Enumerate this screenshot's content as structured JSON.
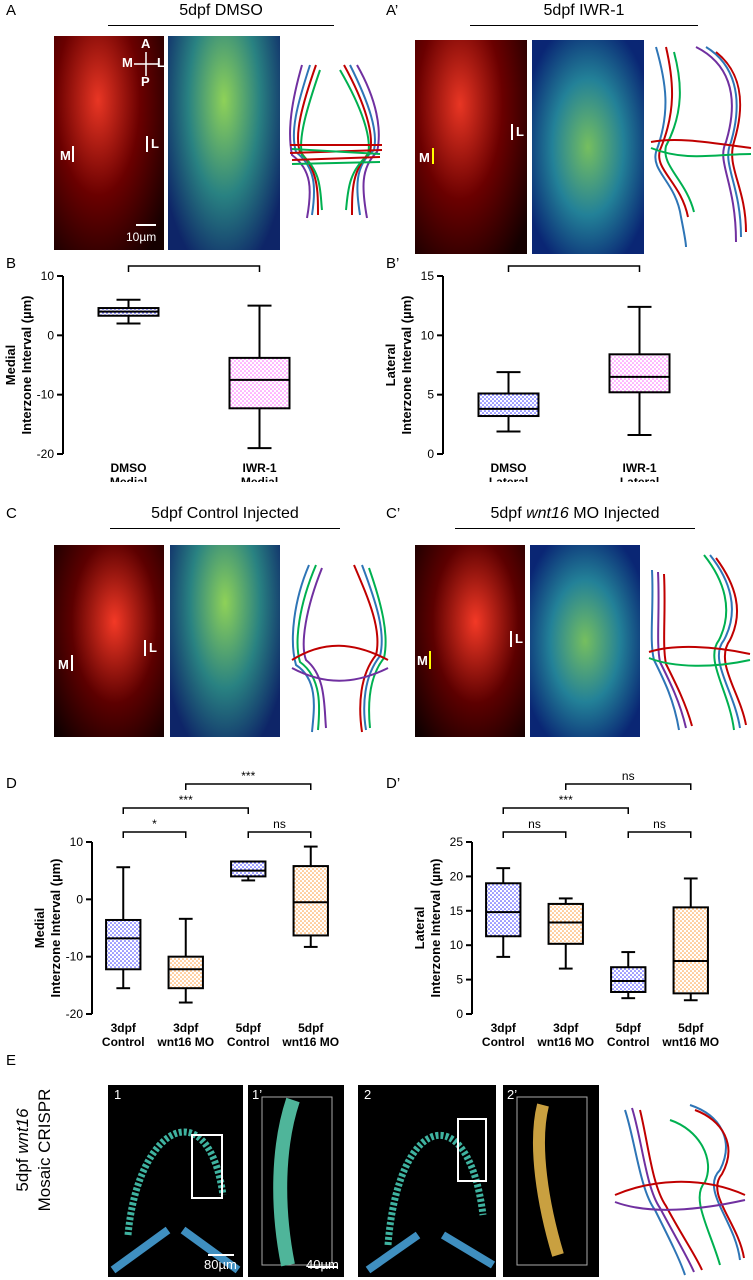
{
  "panel_letters": {
    "A": "A",
    "A2": "A’",
    "B": "B",
    "B2": "B’",
    "C": "C",
    "C2": "C’",
    "D": "D",
    "D2": "D’",
    "E": "E"
  },
  "titles": {
    "A": "5dpf DMSO",
    "A2": "5dpf IWR-1",
    "C": "5dpf Control Injected",
    "C2_pre": "5dpf ",
    "C2_gene": "wnt16",
    "C2_post": " MO Injected"
  },
  "image_labels": {
    "axis_A": "A",
    "axis_P": "P",
    "axis_M": "M",
    "axis_L": "L",
    "M": "M",
    "L": "L",
    "scale_A": "10µm",
    "E1": "1",
    "E1b": "1’",
    "E2": "2",
    "E2b": "2’",
    "scale_E1": "80µm",
    "scale_E1b": "40µm"
  },
  "side_label_E": {
    "line1_pre": "5dpf ",
    "line1_gene": "wnt16",
    "line2": "Mosaic CRISPR"
  },
  "chart_data": [
    {
      "type": "box",
      "panel": "B",
      "ylabel": "Medial\nInterzone Interval (µm)",
      "ylim": [
        -20,
        10
      ],
      "yticks": [
        10,
        0,
        -10,
        -20
      ],
      "categories": [
        [
          "DMSO",
          "Medial"
        ],
        [
          "IWR-1",
          "Medial"
        ]
      ],
      "boxes": [
        {
          "min": 2,
          "q1": 3.3,
          "median": 4,
          "q3": 4.6,
          "max": 6,
          "fill": "#3333ff"
        },
        {
          "min": -19,
          "q1": -12.3,
          "median": -7.5,
          "q3": -3.8,
          "max": 5,
          "fill": "#ff66ff"
        }
      ],
      "brackets": [
        {
          "from": 0,
          "to": 1,
          "level": 0,
          "label": "***"
        }
      ]
    },
    {
      "type": "box",
      "panel": "B’",
      "ylabel": "Lateral\nInterzone Interval (µm)",
      "ylim": [
        0,
        15
      ],
      "yticks": [
        15,
        10,
        5,
        0
      ],
      "categories": [
        [
          "DMSO",
          "Lateral"
        ],
        [
          "IWR-1",
          "Lateral"
        ]
      ],
      "boxes": [
        {
          "min": 1.9,
          "q1": 3.2,
          "median": 3.8,
          "q3": 5.1,
          "max": 6.9,
          "fill": "#3333ff"
        },
        {
          "min": 1.6,
          "q1": 5.2,
          "median": 6.5,
          "q3": 8.4,
          "max": 12.4,
          "fill": "#ff66ff"
        }
      ],
      "brackets": [
        {
          "from": 0,
          "to": 1,
          "level": 0,
          "label": "***"
        }
      ]
    },
    {
      "type": "box",
      "panel": "D",
      "ylabel": "Medial\nInterzone Interval (µm)",
      "ylim": [
        -20,
        10
      ],
      "yticks": [
        10,
        0,
        -10,
        -20
      ],
      "categories": [
        [
          "3dpf",
          "Control"
        ],
        [
          "3dpf",
          "wnt16 MO"
        ],
        [
          "5dpf",
          "Control"
        ],
        [
          "5dpf",
          "wnt16 MO"
        ]
      ],
      "boxes": [
        {
          "min": -15.5,
          "q1": -12.2,
          "median": -6.8,
          "q3": -3.6,
          "max": 5.6,
          "fill": "#3333ff"
        },
        {
          "min": -18,
          "q1": -15.5,
          "median": -12.2,
          "q3": -10,
          "max": -3.4,
          "fill": "#ff9933"
        },
        {
          "min": 3.3,
          "q1": 4,
          "median": 5,
          "q3": 6.6,
          "max": 6.6,
          "fill": "#3333ff"
        },
        {
          "min": -8.3,
          "q1": -6.3,
          "median": -0.5,
          "q3": 5.8,
          "max": 9.2,
          "fill": "#ff9933"
        }
      ],
      "brackets": [
        {
          "from": 0,
          "to": 1,
          "level": 0,
          "label": "*"
        },
        {
          "from": 2,
          "to": 3,
          "level": 0,
          "label": "ns"
        },
        {
          "from": 0,
          "to": 2,
          "level": 1,
          "label": "***"
        },
        {
          "from": 1,
          "to": 3,
          "level": 2,
          "label": "***"
        }
      ]
    },
    {
      "type": "box",
      "panel": "D’",
      "ylabel": "Lateral\nInterzone Interval (µm)",
      "ylim": [
        0,
        25
      ],
      "yticks": [
        25,
        20,
        15,
        10,
        5,
        0
      ],
      "categories": [
        [
          "3dpf",
          "Control"
        ],
        [
          "3dpf",
          "wnt16 MO"
        ],
        [
          "5dpf",
          "Control"
        ],
        [
          "5dpf",
          "wnt16 MO"
        ]
      ],
      "boxes": [
        {
          "min": 8.3,
          "q1": 11.3,
          "median": 14.8,
          "q3": 19,
          "max": 21.2,
          "fill": "#3333ff"
        },
        {
          "min": 6.6,
          "q1": 10.2,
          "median": 13.3,
          "q3": 16,
          "max": 16.8,
          "fill": "#ff9933"
        },
        {
          "min": 2.3,
          "q1": 3.2,
          "median": 4.8,
          "q3": 6.8,
          "max": 9,
          "fill": "#3333ff"
        },
        {
          "min": 2,
          "q1": 3,
          "median": 7.7,
          "q3": 15.5,
          "max": 19.7,
          "fill": "#ff9933"
        }
      ],
      "brackets": [
        {
          "from": 0,
          "to": 1,
          "level": 0,
          "label": "ns"
        },
        {
          "from": 2,
          "to": 3,
          "level": 0,
          "label": "ns"
        },
        {
          "from": 0,
          "to": 2,
          "level": 1,
          "label": "***"
        },
        {
          "from": 1,
          "to": 3,
          "level": 2,
          "label": "ns"
        }
      ]
    }
  ]
}
